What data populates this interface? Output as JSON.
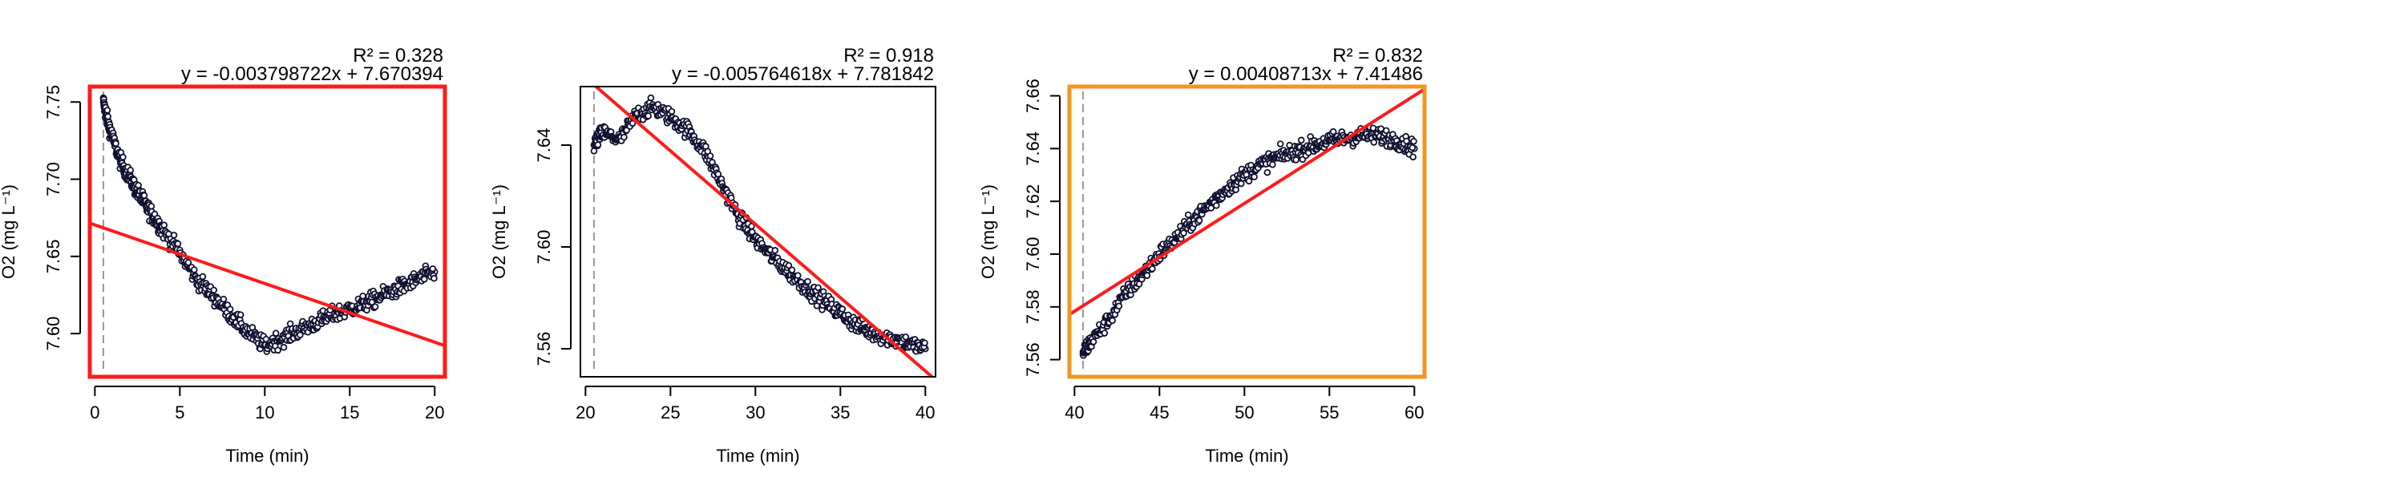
{
  "chart_data": [
    {
      "type": "scatter",
      "xlabel": "Time (min)",
      "ylabel": "O2 (mg L⁻¹)",
      "r2_label": "R² = 0.328",
      "equation": "y = -0.003798722x + 7.670394",
      "frame_color": "#ff1a1a",
      "xlim": [
        -0.3,
        20.6
      ],
      "ylim": [
        7.572,
        7.76
      ],
      "xticks": [
        0,
        5,
        10,
        15,
        20
      ],
      "yticks": [
        "7.60",
        "7.65",
        "7.70",
        "7.75"
      ],
      "vline_x": 0.5,
      "fit": {
        "slope": -0.003798722,
        "intercept": 7.670394,
        "r2": 0.328
      },
      "series": [
        {
          "x": [
            0.5,
            0.7,
            1,
            1.5,
            2,
            2.5,
            3,
            3.5,
            4,
            5,
            6,
            7,
            8,
            9,
            10,
            11,
            12,
            13,
            14,
            15,
            16,
            17,
            18,
            19,
            20
          ],
          "y": [
            7.75,
            7.74,
            7.728,
            7.712,
            7.702,
            7.692,
            7.683,
            7.675,
            7.667,
            7.652,
            7.635,
            7.624,
            7.612,
            7.601,
            7.592,
            7.597,
            7.602,
            7.607,
            7.612,
            7.616,
            7.62,
            7.625,
            7.63,
            7.635,
            7.64
          ]
        }
      ]
    },
    {
      "type": "scatter",
      "xlabel": "Time (min)",
      "ylabel": "O2 (mg L⁻¹)",
      "r2_label": "R² = 0.918",
      "equation": "y = -0.005764618x + 7.781842",
      "frame_color": "#000000",
      "xlim": [
        19.7,
        40.6
      ],
      "ylim": [
        7.549,
        7.663
      ],
      "xticks": [
        20,
        25,
        30,
        35,
        40
      ],
      "yticks": [
        "7.56",
        "7.60",
        "7.64"
      ],
      "vline_x": 20.5,
      "fit": {
        "slope": -0.005764618,
        "intercept": 7.781842,
        "r2": 0.918
      },
      "series": [
        {
          "x": [
            20.5,
            21,
            22,
            23,
            24,
            25,
            26,
            27,
            28,
            29,
            30,
            31,
            32,
            33,
            34,
            35,
            36,
            37,
            38,
            39,
            40
          ],
          "y": [
            7.64,
            7.645,
            7.642,
            7.652,
            7.655,
            7.651,
            7.646,
            7.638,
            7.625,
            7.612,
            7.603,
            7.596,
            7.59,
            7.584,
            7.579,
            7.574,
            7.569,
            7.566,
            7.564,
            7.562,
            7.56
          ]
        }
      ]
    },
    {
      "type": "scatter",
      "xlabel": "Time (min)",
      "ylabel": "O2 (mg L⁻¹)",
      "r2_label": "R² = 0.832",
      "equation": "y = 0.00408713x + 7.41486",
      "frame_color": "#f7941d",
      "xlim": [
        39.7,
        60.6
      ],
      "ylim": [
        7.5535,
        7.6635
      ],
      "xticks": [
        40,
        45,
        50,
        55,
        60
      ],
      "yticks": [
        "7.56",
        "7.58",
        "7.60",
        "7.62",
        "7.64",
        "7.66"
      ],
      "vline_x": 40.5,
      "fit": {
        "slope": 0.00408713,
        "intercept": 7.41486,
        "r2": 0.832
      },
      "series": [
        {
          "x": [
            40.5,
            41,
            42,
            43,
            44,
            45,
            46,
            47,
            48,
            49,
            50,
            51,
            52,
            53,
            54,
            55,
            56,
            57,
            58,
            59,
            60
          ],
          "y": [
            7.563,
            7.567,
            7.575,
            7.585,
            7.592,
            7.6,
            7.606,
            7.613,
            7.619,
            7.625,
            7.63,
            7.634,
            7.637,
            7.639,
            7.641,
            7.643,
            7.644,
            7.645,
            7.645,
            7.643,
            7.64
          ]
        }
      ]
    }
  ]
}
